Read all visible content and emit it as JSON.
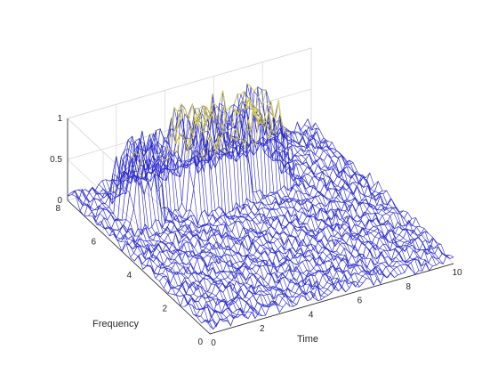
{
  "chart_data": {
    "type": "surface-waterfall",
    "title": "",
    "xlabel": "Time",
    "ylabel": "Frequency",
    "zlabel": "",
    "xlim": [
      0,
      10
    ],
    "ylim": [
      0,
      8
    ],
    "zlim": [
      0,
      1
    ],
    "x_ticks": [
      "0",
      "2",
      "4",
      "6",
      "8",
      "10"
    ],
    "y_ticks": [
      "0",
      "2",
      "4",
      "6",
      "8"
    ],
    "z_ticks": [
      "0",
      "0.5",
      "1"
    ],
    "grid": "on",
    "view": "3-D perspective, time increasing to the right, frequency receding left",
    "line_colors": {
      "mesh": "#2b2bcc",
      "peak": "#e8e030"
    },
    "series": [
      {
        "start": 0.9,
        "end": 2.2,
        "frequency_low": 5.6,
        "frequency_high": 7.0,
        "peak": 0.75
      },
      {
        "start": 1.8,
        "end": 3.4,
        "frequency_low": 6.0,
        "frequency_high": 7.6,
        "peak": 0.75
      },
      {
        "start": 3.2,
        "end": 5.6,
        "frequency_low": 5.2,
        "frequency_high": 7.4,
        "peak": 1.0
      },
      {
        "start": 5.5,
        "end": 7.5,
        "frequency_low": 5.5,
        "frequency_high": 7.3,
        "peak": 1.0
      }
    ],
    "noise_level": 0.15
  }
}
